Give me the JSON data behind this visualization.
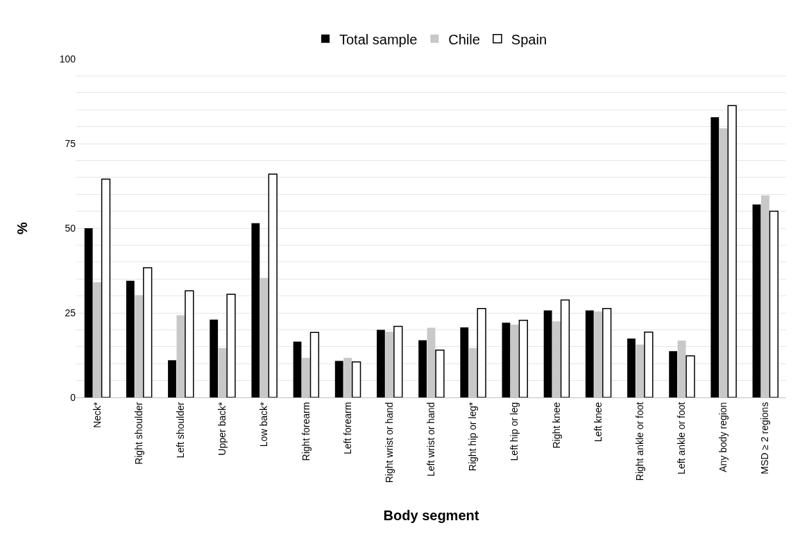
{
  "chart_data": {
    "type": "bar",
    "xlabel": "Body segment",
    "ylabel": "%",
    "categories": [
      "Neck*",
      "Right shoulder",
      "Left shoulder",
      "Upper back*",
      "Low back*",
      "Right forearm",
      "Left forearm",
      "Right wrist or hand",
      "Left wrist or hand",
      "Right hip or leg*",
      "Left hip or leg",
      "Right knee",
      "Left knee",
      "Right ankle or foot",
      "Left ankle or foot",
      "Any body region",
      "MSD ≥ 2 regions"
    ],
    "series": [
      {
        "name": "Total sample",
        "color": "#000000",
        "values": [
          50,
          34.5,
          11,
          23,
          51.5,
          16.5,
          10.8,
          20,
          16.9,
          20.7,
          22.1,
          25.7,
          25.7,
          17.4,
          13.7,
          82.8,
          57
        ]
      },
      {
        "name": "Chile",
        "color": "#c8c8c8",
        "values": [
          34,
          30.2,
          24.3,
          14.6,
          35.3,
          11.7,
          11.7,
          19.4,
          20.6,
          14.6,
          21.5,
          22.5,
          25.4,
          15.6,
          16.8,
          79.5,
          59.7
        ]
      },
      {
        "name": "Spain",
        "color": "#ffffff",
        "values": [
          64.5,
          38.3,
          31.5,
          30.5,
          66,
          19.2,
          10.5,
          21,
          14,
          26.3,
          22.8,
          28.8,
          26.3,
          19.3,
          12.3,
          86.2,
          55
        ]
      }
    ],
    "ylim": [
      0,
      100
    ],
    "yticks": [
      0,
      {
        "value": 5,
        "label": null
      },
      {
        "value": 10,
        "label": null
      },
      {
        "value": 15,
        "label": null
      },
      {
        "value": 20,
        "label": null
      },
      25,
      {
        "value": 30,
        "label": null
      },
      {
        "value": 35,
        "label": null
      },
      {
        "value": 40,
        "label": null
      },
      {
        "value": 45,
        "label": null
      },
      50,
      {
        "value": 55,
        "label": null
      },
      {
        "value": 60,
        "label": null
      },
      {
        "value": 65,
        "label": null
      },
      {
        "value": 70,
        "label": null
      },
      75,
      {
        "value": 80,
        "label": null
      },
      {
        "value": 85,
        "label": null
      },
      {
        "value": 90,
        "label": null
      },
      {
        "value": 95,
        "label": null
      },
      100
    ],
    "grid": "y",
    "legend": "top"
  }
}
